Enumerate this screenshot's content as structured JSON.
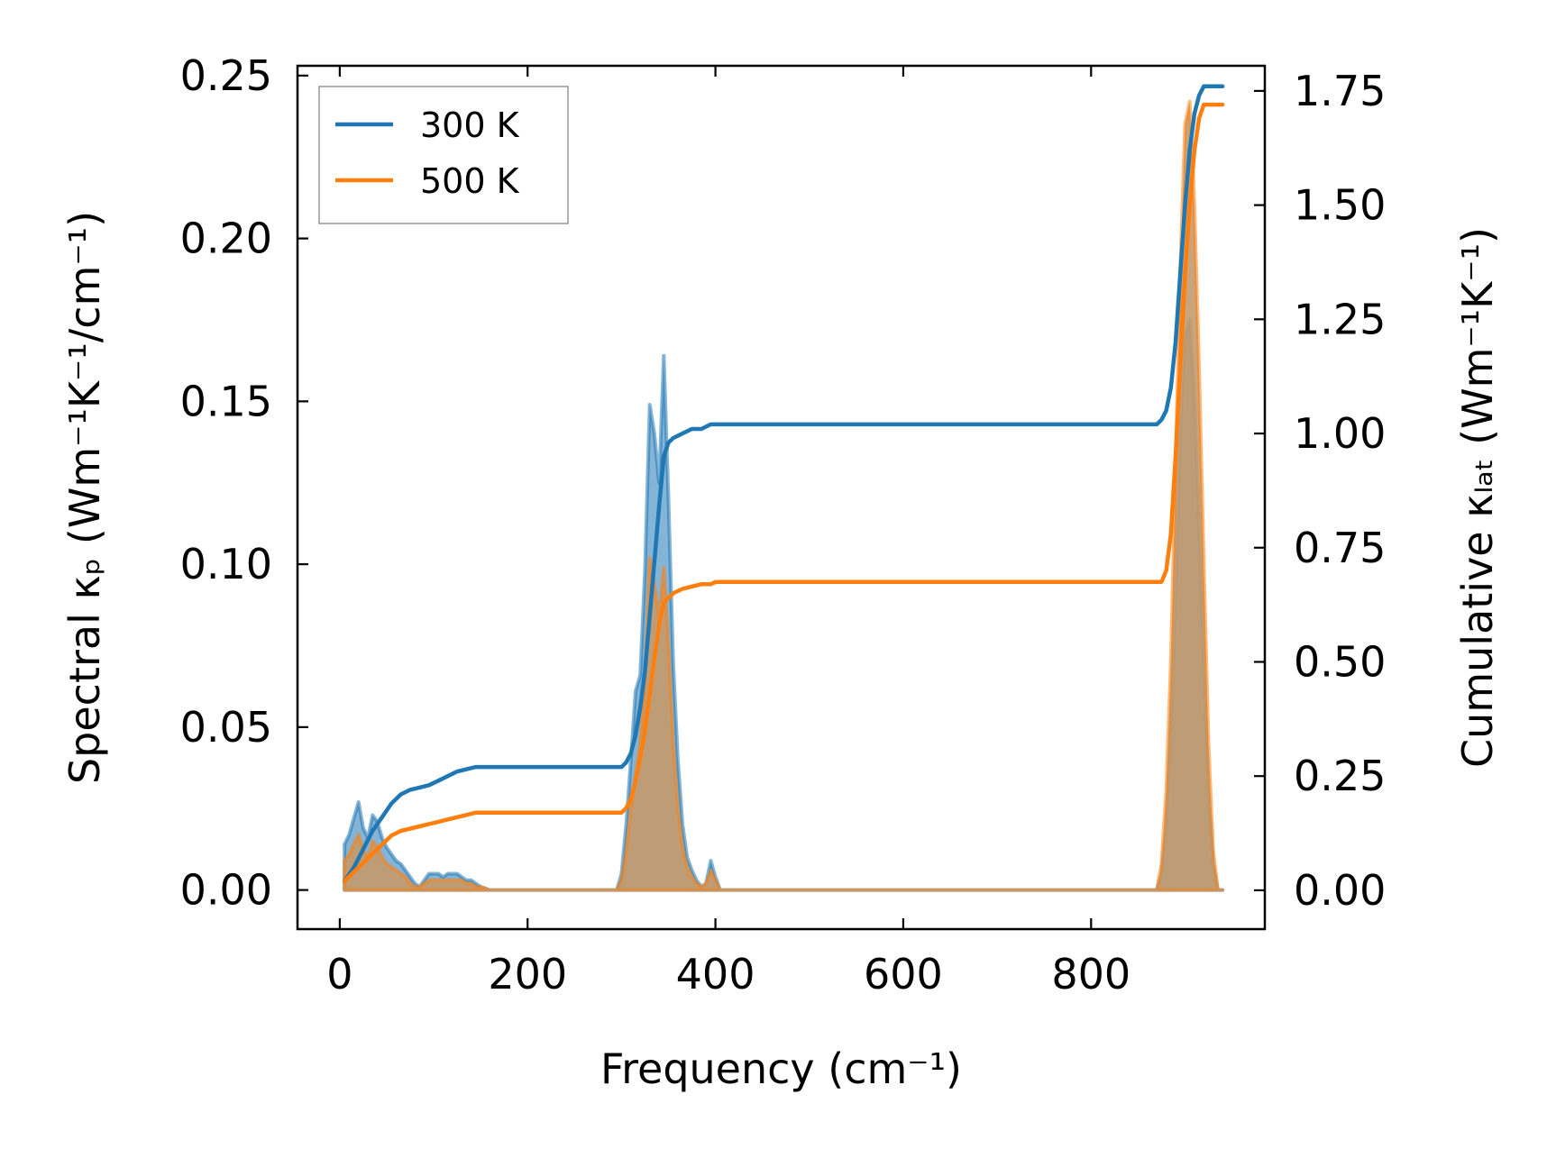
{
  "chart_data": {
    "type": "area",
    "xlabel": "Frequency (cm⁻¹)",
    "ylabel": "Spectral κₚ (Wm⁻¹K⁻¹/cm⁻¹)",
    "y2label": "Cumulative κₗₐₜ (Wm⁻¹K⁻¹)",
    "xlim": [
      -45,
      985
    ],
    "ylim": [
      -0.012,
      0.253
    ],
    "y2lim": [
      -0.085,
      1.805
    ],
    "xticks": [
      "0",
      "200",
      "400",
      "600",
      "800"
    ],
    "xtick_values": [
      0,
      200,
      400,
      600,
      800
    ],
    "yticks": [
      "0.00",
      "0.05",
      "0.10",
      "0.15",
      "0.20",
      "0.25"
    ],
    "ytick_values": [
      0,
      0.05,
      0.1,
      0.15,
      0.2,
      0.25
    ],
    "y2ticks": [
      "0.00",
      "0.25",
      "0.50",
      "0.75",
      "1.00",
      "1.25",
      "1.50",
      "1.75"
    ],
    "y2tick_values": [
      0,
      0.25,
      0.5,
      0.75,
      1.0,
      1.25,
      1.5,
      1.75
    ],
    "legend_position": "top-left",
    "series": [
      {
        "name": "300 K",
        "color": "#1f77b4",
        "spectral": {
          "x": [
            5,
            10,
            15,
            20,
            25,
            30,
            35,
            40,
            45,
            50,
            55,
            60,
            65,
            70,
            75,
            80,
            85,
            90,
            95,
            100,
            105,
            110,
            115,
            120,
            125,
            130,
            135,
            140,
            145,
            150,
            160,
            170,
            200,
            250,
            295,
            300,
            305,
            310,
            315,
            320,
            325,
            330,
            335,
            340,
            345,
            350,
            355,
            360,
            365,
            370,
            375,
            380,
            385,
            390,
            395,
            400,
            405,
            450,
            600,
            800,
            870,
            875,
            880,
            885,
            890,
            895,
            900,
            905,
            910,
            915,
            920,
            925,
            930,
            935,
            940
          ],
          "y": [
            0.014,
            0.017,
            0.022,
            0.027,
            0.019,
            0.016,
            0.023,
            0.021,
            0.016,
            0.013,
            0.011,
            0.009,
            0.008,
            0.006,
            0.004,
            0.002,
            0.001,
            0.003,
            0.005,
            0.005,
            0.005,
            0.004,
            0.005,
            0.005,
            0.005,
            0.004,
            0.003,
            0.003,
            0.002,
            0.001,
            0.0,
            0.0,
            0.0,
            0.0,
            0.0,
            0.005,
            0.02,
            0.04,
            0.061,
            0.066,
            0.098,
            0.149,
            0.14,
            0.125,
            0.164,
            0.12,
            0.07,
            0.04,
            0.02,
            0.01,
            0.006,
            0.003,
            0.001,
            0.002,
            0.009,
            0.004,
            0.0,
            0.0,
            0.0,
            0.0,
            0.0,
            0.005,
            0.02,
            0.05,
            0.09,
            0.14,
            0.17,
            0.175,
            0.15,
            0.11,
            0.07,
            0.03,
            0.008,
            0.0,
            0.0
          ]
        },
        "cumulative": {
          "x": [
            5,
            15,
            25,
            35,
            45,
            55,
            65,
            75,
            85,
            95,
            105,
            115,
            125,
            135,
            145,
            155,
            200,
            250,
            300,
            305,
            310,
            315,
            320,
            325,
            330,
            335,
            340,
            345,
            350,
            355,
            365,
            375,
            385,
            395,
            400,
            500,
            600,
            700,
            800,
            870,
            875,
            880,
            885,
            890,
            895,
            900,
            905,
            910,
            915,
            920,
            930,
            940
          ],
          "y": [
            0.02,
            0.05,
            0.09,
            0.13,
            0.16,
            0.19,
            0.21,
            0.22,
            0.225,
            0.23,
            0.24,
            0.25,
            0.26,
            0.265,
            0.27,
            0.27,
            0.27,
            0.27,
            0.27,
            0.28,
            0.3,
            0.34,
            0.4,
            0.48,
            0.6,
            0.72,
            0.84,
            0.95,
            0.98,
            0.99,
            1.0,
            1.01,
            1.01,
            1.02,
            1.02,
            1.02,
            1.02,
            1.02,
            1.02,
            1.02,
            1.03,
            1.05,
            1.1,
            1.2,
            1.35,
            1.5,
            1.62,
            1.7,
            1.74,
            1.76,
            1.76,
            1.76
          ]
        }
      },
      {
        "name": "500 K",
        "color": "#ff7f0e",
        "spectral": {
          "x": [
            5,
            10,
            15,
            20,
            25,
            30,
            35,
            40,
            45,
            50,
            55,
            60,
            65,
            70,
            75,
            80,
            85,
            90,
            95,
            100,
            105,
            110,
            115,
            120,
            125,
            130,
            135,
            140,
            145,
            150,
            160,
            170,
            200,
            250,
            295,
            300,
            305,
            310,
            315,
            320,
            325,
            330,
            335,
            340,
            345,
            350,
            355,
            360,
            365,
            370,
            375,
            380,
            385,
            390,
            395,
            400,
            405,
            450,
            600,
            800,
            870,
            875,
            880,
            885,
            890,
            895,
            900,
            905,
            910,
            915,
            920,
            925,
            930,
            935,
            940
          ],
          "y": [
            0.009,
            0.011,
            0.014,
            0.017,
            0.012,
            0.01,
            0.015,
            0.013,
            0.01,
            0.008,
            0.007,
            0.006,
            0.005,
            0.004,
            0.002,
            0.001,
            0.001,
            0.002,
            0.003,
            0.003,
            0.003,
            0.003,
            0.003,
            0.003,
            0.003,
            0.003,
            0.002,
            0.002,
            0.001,
            0.001,
            0.0,
            0.0,
            0.0,
            0.0,
            0.0,
            0.003,
            0.012,
            0.025,
            0.035,
            0.045,
            0.065,
            0.102,
            0.094,
            0.083,
            0.099,
            0.075,
            0.045,
            0.025,
            0.013,
            0.007,
            0.004,
            0.002,
            0.001,
            0.002,
            0.006,
            0.003,
            0.0,
            0.0,
            0.0,
            0.0,
            0.0,
            0.008,
            0.03,
            0.07,
            0.13,
            0.19,
            0.235,
            0.242,
            0.21,
            0.16,
            0.1,
            0.045,
            0.012,
            0.0,
            0.0
          ]
        },
        "cumulative": {
          "x": [
            5,
            15,
            25,
            35,
            45,
            55,
            65,
            75,
            85,
            95,
            105,
            115,
            125,
            135,
            145,
            155,
            200,
            250,
            300,
            305,
            310,
            315,
            320,
            325,
            330,
            335,
            340,
            345,
            350,
            355,
            365,
            375,
            385,
            395,
            400,
            500,
            600,
            700,
            800,
            875,
            880,
            885,
            890,
            895,
            900,
            905,
            910,
            915,
            920,
            930,
            940
          ],
          "y": [
            0.02,
            0.04,
            0.06,
            0.08,
            0.1,
            0.12,
            0.13,
            0.135,
            0.14,
            0.145,
            0.15,
            0.155,
            0.16,
            0.165,
            0.17,
            0.17,
            0.17,
            0.17,
            0.17,
            0.18,
            0.2,
            0.24,
            0.29,
            0.35,
            0.43,
            0.51,
            0.58,
            0.63,
            0.64,
            0.65,
            0.66,
            0.665,
            0.67,
            0.67,
            0.675,
            0.675,
            0.675,
            0.675,
            0.675,
            0.675,
            0.7,
            0.78,
            0.95,
            1.15,
            1.35,
            1.5,
            1.62,
            1.69,
            1.72,
            1.72,
            1.72
          ]
        }
      }
    ]
  }
}
